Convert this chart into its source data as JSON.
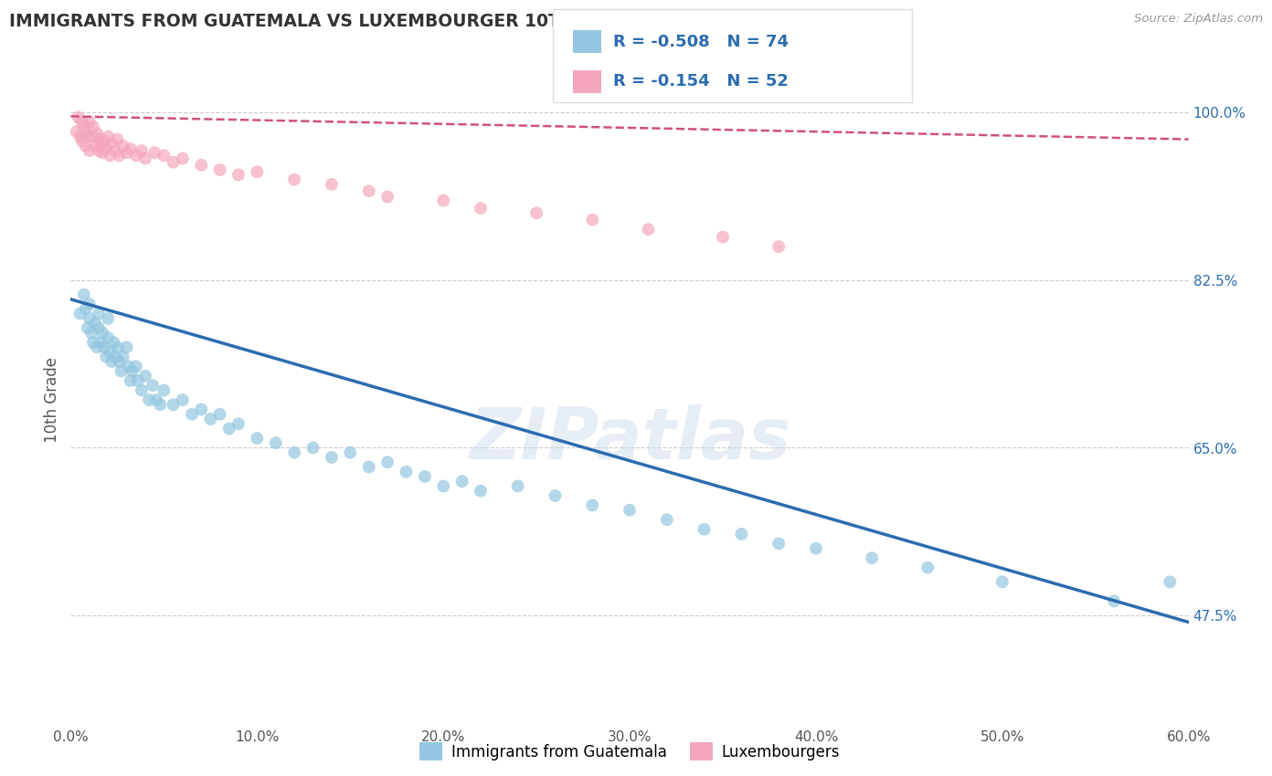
{
  "title": "IMMIGRANTS FROM GUATEMALA VS LUXEMBOURGER 10TH GRADE CORRELATION CHART",
  "source": "Source: ZipAtlas.com",
  "ylabel": "10th Grade",
  "xlim": [
    0.0,
    0.6
  ],
  "ylim": [
    0.36,
    1.04
  ],
  "xtick_labels": [
    "0.0%",
    "10.0%",
    "20.0%",
    "30.0%",
    "40.0%",
    "50.0%",
    "60.0%"
  ],
  "xtick_values": [
    0.0,
    0.1,
    0.2,
    0.3,
    0.4,
    0.5,
    0.6
  ],
  "ytick_labels_right": [
    "47.5%",
    "65.0%",
    "82.5%",
    "100.0%"
  ],
  "ytick_values_right": [
    0.475,
    0.65,
    0.825,
    1.0
  ],
  "grid_color": "#cccccc",
  "background_color": "#ffffff",
  "blue_color": "#93c6e0",
  "pink_color": "#f4a7ba",
  "blue_line_color": "#2b6cb0",
  "pink_line_color": "#d05080",
  "R_blue": -0.508,
  "N_blue": 74,
  "R_pink": -0.154,
  "N_pink": 52,
  "legend_label_blue": "Immigrants from Guatemala",
  "legend_label_pink": "Luxembourgers",
  "watermark": "ZIPatlas",
  "blue_trend_x0": 0.0,
  "blue_trend_y0": 0.805,
  "blue_trend_x1": 0.6,
  "blue_trend_y1": 0.468,
  "pink_trend_x0": 0.0,
  "pink_trend_y0": 0.996,
  "pink_trend_x1": 0.6,
  "pink_trend_y1": 0.972,
  "blue_scatter_x": [
    0.005,
    0.007,
    0.008,
    0.009,
    0.01,
    0.01,
    0.011,
    0.012,
    0.013,
    0.014,
    0.015,
    0.015,
    0.016,
    0.017,
    0.018,
    0.019,
    0.02,
    0.02,
    0.021,
    0.022,
    0.023,
    0.024,
    0.025,
    0.026,
    0.027,
    0.028,
    0.03,
    0.031,
    0.032,
    0.033,
    0.035,
    0.036,
    0.038,
    0.04,
    0.042,
    0.044,
    0.046,
    0.048,
    0.05,
    0.055,
    0.06,
    0.065,
    0.07,
    0.075,
    0.08,
    0.085,
    0.09,
    0.1,
    0.11,
    0.12,
    0.13,
    0.14,
    0.15,
    0.16,
    0.17,
    0.18,
    0.19,
    0.2,
    0.21,
    0.22,
    0.24,
    0.26,
    0.28,
    0.3,
    0.32,
    0.34,
    0.36,
    0.38,
    0.4,
    0.43,
    0.46,
    0.5,
    0.56,
    0.59
  ],
  "blue_scatter_y": [
    0.79,
    0.81,
    0.795,
    0.775,
    0.8,
    0.785,
    0.77,
    0.76,
    0.78,
    0.755,
    0.79,
    0.775,
    0.76,
    0.77,
    0.755,
    0.745,
    0.785,
    0.765,
    0.75,
    0.74,
    0.76,
    0.745,
    0.755,
    0.74,
    0.73,
    0.745,
    0.755,
    0.735,
    0.72,
    0.73,
    0.735,
    0.72,
    0.71,
    0.725,
    0.7,
    0.715,
    0.7,
    0.695,
    0.71,
    0.695,
    0.7,
    0.685,
    0.69,
    0.68,
    0.685,
    0.67,
    0.675,
    0.66,
    0.655,
    0.645,
    0.65,
    0.64,
    0.645,
    0.63,
    0.635,
    0.625,
    0.62,
    0.61,
    0.615,
    0.605,
    0.61,
    0.6,
    0.59,
    0.585,
    0.575,
    0.565,
    0.56,
    0.55,
    0.545,
    0.535,
    0.525,
    0.51,
    0.49,
    0.51
  ],
  "pink_scatter_x": [
    0.003,
    0.004,
    0.005,
    0.006,
    0.006,
    0.007,
    0.008,
    0.008,
    0.009,
    0.01,
    0.01,
    0.011,
    0.012,
    0.013,
    0.014,
    0.015,
    0.015,
    0.016,
    0.017,
    0.018,
    0.019,
    0.02,
    0.021,
    0.022,
    0.024,
    0.025,
    0.026,
    0.028,
    0.03,
    0.032,
    0.035,
    0.038,
    0.04,
    0.045,
    0.05,
    0.055,
    0.06,
    0.07,
    0.08,
    0.09,
    0.1,
    0.12,
    0.14,
    0.16,
    0.17,
    0.2,
    0.22,
    0.25,
    0.28,
    0.31,
    0.35,
    0.38
  ],
  "pink_scatter_y": [
    0.98,
    0.995,
    0.975,
    0.99,
    0.97,
    0.985,
    0.965,
    0.98,
    0.975,
    0.99,
    0.96,
    0.975,
    0.985,
    0.965,
    0.978,
    0.972,
    0.96,
    0.968,
    0.958,
    0.97,
    0.962,
    0.975,
    0.955,
    0.968,
    0.96,
    0.972,
    0.955,
    0.965,
    0.958,
    0.962,
    0.955,
    0.96,
    0.952,
    0.958,
    0.955,
    0.948,
    0.952,
    0.945,
    0.94,
    0.935,
    0.938,
    0.93,
    0.925,
    0.918,
    0.912,
    0.908,
    0.9,
    0.895,
    0.888,
    0.878,
    0.87,
    0.86
  ]
}
